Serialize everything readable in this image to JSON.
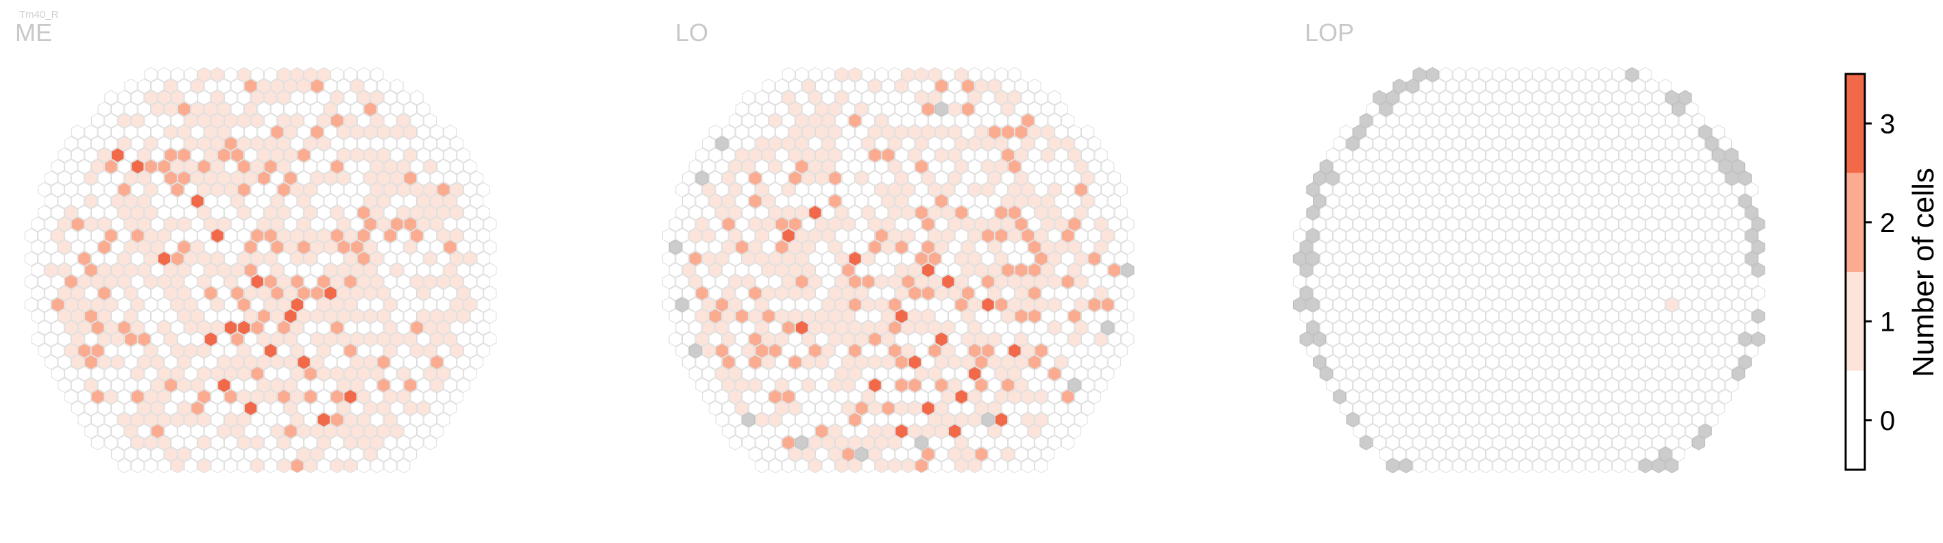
{
  "figure": {
    "cell_type": "Tm40_R"
  },
  "colors": {
    "scale": [
      "#ffffff",
      "#fde4da",
      "#fbab8f",
      "#f2694a"
    ],
    "hex_edge": "#dddddd",
    "missing_fill": "#cccccc",
    "missing_edge": "#bbbbbb"
  },
  "chart_data": [
    {
      "type": "heatmap",
      "title": "ME",
      "grid": {
        "rows": 35,
        "cols": 35,
        "layout": "hex",
        "shape": "full-circle"
      },
      "high_cells": [
        [
          7,
          6
        ],
        [
          8,
          8
        ],
        [
          11,
          12
        ],
        [
          14,
          14
        ],
        [
          16,
          10
        ],
        [
          18,
          17
        ],
        [
          19,
          22
        ],
        [
          20,
          20
        ],
        [
          21,
          19
        ],
        [
          22,
          16
        ],
        [
          22,
          15
        ],
        [
          23,
          13
        ],
        [
          24,
          18
        ],
        [
          25,
          20
        ],
        [
          27,
          14
        ],
        [
          28,
          24
        ],
        [
          29,
          16
        ],
        [
          30,
          22
        ]
      ],
      "medium_density": 0.42,
      "low_density": 0.48,
      "missing_cells": []
    },
    {
      "type": "heatmap",
      "title": "LO",
      "grid": {
        "rows": 35,
        "cols": 35,
        "layout": "hex",
        "shape": "full-circle"
      },
      "high_cells": [
        [
          12,
          11
        ],
        [
          14,
          9
        ],
        [
          16,
          14
        ],
        [
          17,
          19
        ],
        [
          18,
          21
        ],
        [
          20,
          24
        ],
        [
          21,
          17
        ],
        [
          22,
          10
        ],
        [
          23,
          20
        ],
        [
          24,
          26
        ],
        [
          25,
          18
        ],
        [
          26,
          23
        ],
        [
          27,
          15
        ],
        [
          28,
          22
        ],
        [
          29,
          19
        ],
        [
          30,
          25
        ],
        [
          31,
          21
        ],
        [
          31,
          17
        ]
      ],
      "medium_density": 0.38,
      "low_density": 0.42,
      "missing_cells": [
        [
          3,
          20
        ],
        [
          6,
          4
        ],
        [
          9,
          2
        ],
        [
          15,
          0
        ],
        [
          20,
          1
        ],
        [
          24,
          2
        ],
        [
          30,
          6
        ],
        [
          32,
          10
        ],
        [
          33,
          14
        ],
        [
          32,
          19
        ],
        [
          30,
          24
        ],
        [
          27,
          30
        ],
        [
          22,
          33
        ],
        [
          17,
          34
        ]
      ]
    },
    {
      "type": "heatmap",
      "title": "LOP",
      "grid": {
        "rows": 35,
        "cols": 35,
        "layout": "hex",
        "shape": "full-circle"
      },
      "high_cells": [],
      "low_cells": [
        [
          12,
          1
        ],
        [
          20,
          28
        ]
      ],
      "medium_density": 0.0,
      "low_density": 0.0,
      "missing_ring": true,
      "missing_cells": []
    }
  ],
  "colorbar": {
    "label": "Number of cells",
    "ticks": [
      "0",
      "1",
      "2",
      "3"
    ],
    "vmin": -0.5,
    "vmax": 3.5
  }
}
